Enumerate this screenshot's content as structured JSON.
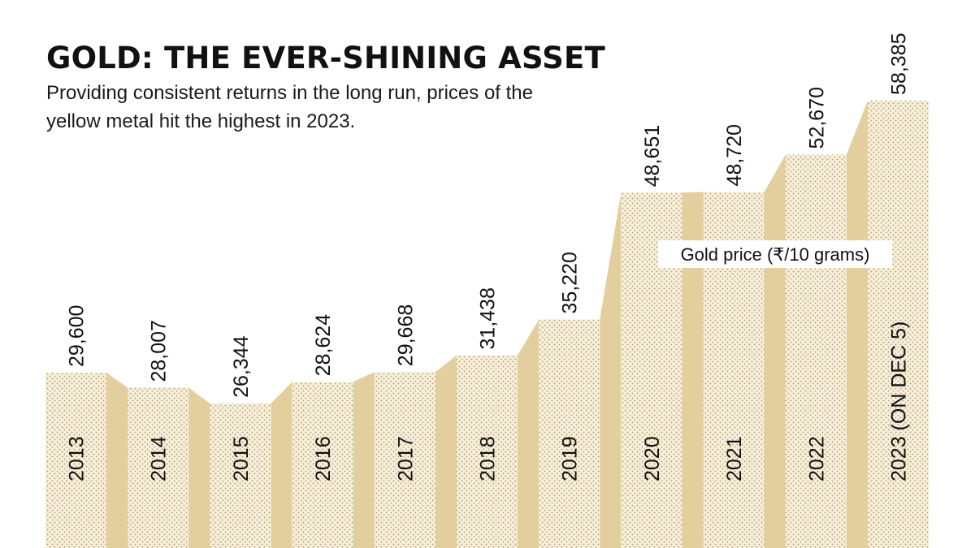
{
  "header": {
    "title": "GOLD: THE EVER-SHINING ASSET",
    "subtitle": "Providing consistent returns in the long run, prices of the yellow metal hit the highest in 2023."
  },
  "chart_data": {
    "type": "bar",
    "categories": [
      "2013",
      "2014",
      "2015",
      "2016",
      "2017",
      "2018",
      "2019",
      "2020",
      "2021",
      "2022",
      "2023 (ON DEC 5)"
    ],
    "values": [
      29600,
      28007,
      26344,
      28624,
      29668,
      31438,
      35220,
      48651,
      48720,
      52670,
      58385
    ],
    "value_labels": [
      "29,600",
      "28,007",
      "26,344",
      "28,624",
      "29,668",
      "31,438",
      "35,220",
      "48,651",
      "48,720",
      "52,670",
      "58,385"
    ],
    "unit_label": "Gold price (₹/10 grams)",
    "grid": false,
    "legend": "none"
  },
  "colors": {
    "bar_fill": "#f6efdc",
    "bar_dots": "#b59b5e",
    "connector": "#e3cf9e",
    "text": "#111111"
  }
}
